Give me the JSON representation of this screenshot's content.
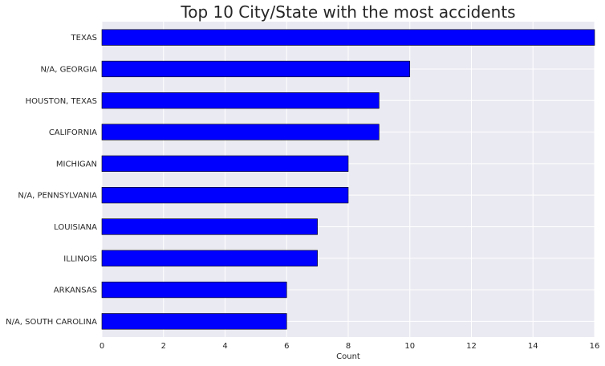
{
  "chart_data": {
    "type": "bar",
    "orientation": "horizontal",
    "title": "Top 10 City/State with the most accidents",
    "xlabel": "Count",
    "ylabel": "",
    "xlim": [
      0,
      16
    ],
    "xticks": [
      0,
      2,
      4,
      6,
      8,
      10,
      12,
      14,
      16
    ],
    "grid": true,
    "bar_color": "#0000ff",
    "background_color": "#eaeaf2",
    "grid_color": "#ffffff",
    "categories": [
      "TEXAS",
      "N/A, GEORGIA",
      "HOUSTON, TEXAS",
      "CALIFORNIA",
      "MICHIGAN",
      "N/A, PENNSYLVANIA",
      "LOUISIANA",
      "ILLINOIS",
      "ARKANSAS",
      "N/A, SOUTH CAROLINA"
    ],
    "values": [
      16,
      10,
      9,
      9,
      8,
      8,
      7,
      7,
      6,
      6
    ]
  }
}
